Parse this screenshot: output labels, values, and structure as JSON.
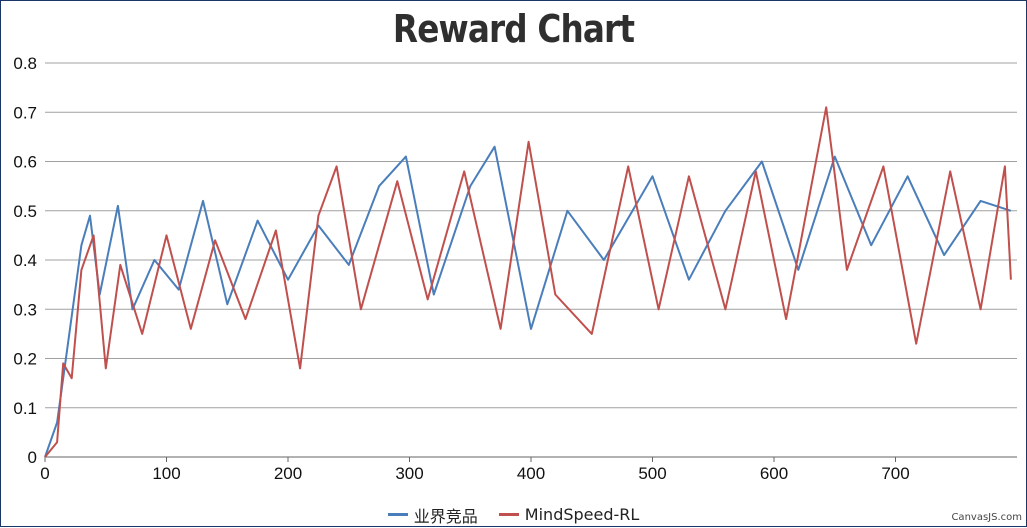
{
  "chart_data": {
    "type": "line",
    "title": "Reward Chart",
    "xlabel": "",
    "ylabel": "",
    "xlim": [
      0,
      800
    ],
    "ylim": [
      0,
      0.8
    ],
    "x_ticks": [
      "0",
      "100",
      "200",
      "300",
      "400",
      "500",
      "600",
      "700"
    ],
    "y_ticks": [
      "0",
      "0.1",
      "0.2",
      "0.3",
      "0.4",
      "0.5",
      "0.6",
      "0.7",
      "0.8"
    ],
    "grid": "horizontal",
    "legend_position": "bottom",
    "series": [
      {
        "name": "业界竞品",
        "color": "#4a7ebb",
        "x": [
          0,
          10,
          20,
          30,
          37,
          45,
          60,
          72,
          90,
          110,
          130,
          150,
          175,
          200,
          225,
          250,
          275,
          297,
          320,
          350,
          370,
          400,
          430,
          460,
          500,
          530,
          560,
          590,
          620,
          650,
          680,
          710,
          740,
          770,
          795
        ],
        "values": [
          0.0,
          0.07,
          0.25,
          0.43,
          0.49,
          0.33,
          0.51,
          0.3,
          0.4,
          0.34,
          0.52,
          0.31,
          0.48,
          0.36,
          0.47,
          0.39,
          0.55,
          0.61,
          0.33,
          0.55,
          0.63,
          0.26,
          0.5,
          0.4,
          0.57,
          0.36,
          0.5,
          0.6,
          0.38,
          0.61,
          0.43,
          0.57,
          0.41,
          0.52,
          0.5
        ]
      },
      {
        "name": "MindSpeed-RL",
        "color": "#c0504d",
        "x": [
          0,
          10,
          15,
          22,
          30,
          40,
          50,
          62,
          80,
          100,
          120,
          140,
          165,
          190,
          210,
          225,
          240,
          260,
          290,
          315,
          345,
          375,
          398,
          420,
          450,
          480,
          505,
          530,
          560,
          585,
          610,
          643,
          660,
          690,
          717,
          745,
          770,
          790,
          795
        ],
        "values": [
          0.0,
          0.03,
          0.19,
          0.16,
          0.38,
          0.45,
          0.18,
          0.39,
          0.25,
          0.45,
          0.26,
          0.44,
          0.28,
          0.46,
          0.18,
          0.49,
          0.59,
          0.3,
          0.56,
          0.32,
          0.58,
          0.26,
          0.64,
          0.33,
          0.25,
          0.59,
          0.3,
          0.57,
          0.3,
          0.58,
          0.28,
          0.71,
          0.38,
          0.59,
          0.23,
          0.58,
          0.3,
          0.59,
          0.36
        ]
      }
    ]
  },
  "legend": {
    "series1_label": "业界竞品",
    "series2_label": "MindSpeed-RL"
  },
  "credit": "CanvasJS.com"
}
